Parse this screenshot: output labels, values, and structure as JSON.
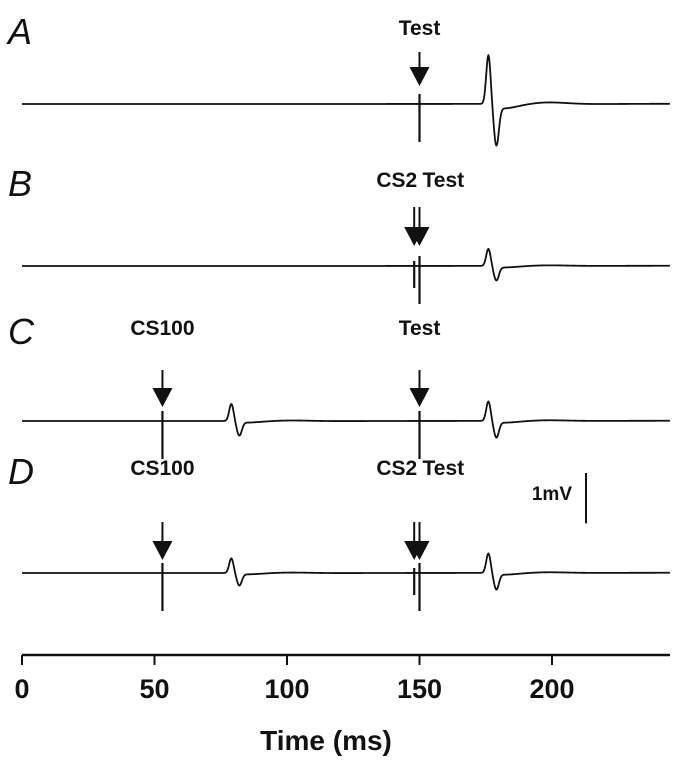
{
  "chart_data": {
    "type": "line",
    "xlabel": "Time (ms)",
    "xlim": [
      0,
      245
    ],
    "xticks": [
      0,
      50,
      100,
      150,
      200
    ],
    "xtick_labels": [
      "0",
      "50",
      "100",
      "150",
      "200"
    ],
    "ylabel": "",
    "scale_bar": {
      "label": "1mV",
      "value_mV": 1
    },
    "panels": [
      {
        "label": "A",
        "stimuli": [
          {
            "name": "Test",
            "time": 150
          }
        ],
        "responses": [
          {
            "peak_time": 176,
            "amplitude": 1.0
          }
        ]
      },
      {
        "label": "B",
        "stimuli": [
          {
            "name": "CS2",
            "time": 148
          },
          {
            "name": "Test",
            "time": 150
          }
        ],
        "responses": [
          {
            "peak_time": 176,
            "amplitude": 0.35
          }
        ]
      },
      {
        "label": "C",
        "stimuli": [
          {
            "name": "CS100",
            "time": 53
          },
          {
            "name": "Test",
            "time": 150
          }
        ],
        "responses": [
          {
            "peak_time": 79,
            "amplitude": 0.35
          },
          {
            "peak_time": 176,
            "amplitude": 0.4
          }
        ]
      },
      {
        "label": "D",
        "stimuli": [
          {
            "name": "CS100",
            "time": 53
          },
          {
            "name": "CS2",
            "time": 148
          },
          {
            "name": "Test",
            "time": 150
          }
        ],
        "responses": [
          {
            "peak_time": 79,
            "amplitude": 0.3
          },
          {
            "peak_time": 176,
            "amplitude": 0.4
          }
        ]
      }
    ]
  }
}
